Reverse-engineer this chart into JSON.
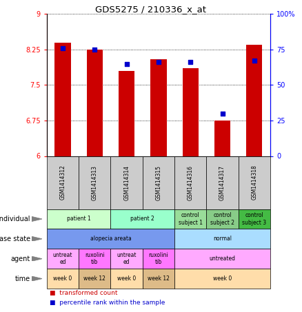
{
  "title": "GDS5275 / 210336_x_at",
  "samples": [
    "GSM1414312",
    "GSM1414313",
    "GSM1414314",
    "GSM1414315",
    "GSM1414316",
    "GSM1414317",
    "GSM1414318"
  ],
  "bar_values": [
    8.4,
    8.25,
    7.8,
    8.05,
    7.85,
    6.75,
    8.35
  ],
  "dot_values": [
    76,
    75,
    65,
    66,
    66,
    30,
    67
  ],
  "ylim_left": [
    6,
    9
  ],
  "ylim_right": [
    0,
    100
  ],
  "yticks_left": [
    6,
    6.75,
    7.5,
    8.25,
    9
  ],
  "yticks_right": [
    0,
    25,
    50,
    75,
    100
  ],
  "ytick_labels_right": [
    "0",
    "25",
    "50",
    "75",
    "100%"
  ],
  "ytick_labels_left": [
    "6",
    "6.75",
    "7.5",
    "8.25",
    "9"
  ],
  "bar_color": "#cc0000",
  "dot_color": "#0000cc",
  "bar_bottom": 6,
  "annotations": {
    "individual": {
      "label": "individual",
      "groups": [
        {
          "span": [
            0,
            1
          ],
          "text": "patient 1",
          "color": "#ccffcc"
        },
        {
          "span": [
            2,
            3
          ],
          "text": "patient 2",
          "color": "#99ffcc"
        },
        {
          "span": [
            4,
            4
          ],
          "text": "control\nsubject 1",
          "color": "#99dd99"
        },
        {
          "span": [
            5,
            5
          ],
          "text": "control\nsubject 2",
          "color": "#88cc88"
        },
        {
          "span": [
            6,
            6
          ],
          "text": "control\nsubject 3",
          "color": "#44bb44"
        }
      ]
    },
    "disease_state": {
      "label": "disease state",
      "groups": [
        {
          "span": [
            0,
            3
          ],
          "text": "alopecia areata",
          "color": "#7799ee"
        },
        {
          "span": [
            4,
            6
          ],
          "text": "normal",
          "color": "#aaddff"
        }
      ]
    },
    "agent": {
      "label": "agent",
      "groups": [
        {
          "span": [
            0,
            0
          ],
          "text": "untreat\ned",
          "color": "#ffaaff"
        },
        {
          "span": [
            1,
            1
          ],
          "text": "ruxolini\ntib",
          "color": "#ff77ff"
        },
        {
          "span": [
            2,
            2
          ],
          "text": "untreat\ned",
          "color": "#ffaaff"
        },
        {
          "span": [
            3,
            3
          ],
          "text": "ruxolini\ntib",
          "color": "#ff77ff"
        },
        {
          "span": [
            4,
            6
          ],
          "text": "untreated",
          "color": "#ffaaff"
        }
      ]
    },
    "time": {
      "label": "time",
      "groups": [
        {
          "span": [
            0,
            0
          ],
          "text": "week 0",
          "color": "#ffddaa"
        },
        {
          "span": [
            1,
            1
          ],
          "text": "week 12",
          "color": "#ddbb88"
        },
        {
          "span": [
            2,
            2
          ],
          "text": "week 0",
          "color": "#ffddaa"
        },
        {
          "span": [
            3,
            3
          ],
          "text": "week 12",
          "color": "#ddbb88"
        },
        {
          "span": [
            4,
            6
          ],
          "text": "week 0",
          "color": "#ffddaa"
        }
      ]
    }
  },
  "annot_order": [
    "individual",
    "disease_state",
    "agent",
    "time"
  ],
  "annot_labels": [
    "individual",
    "disease state",
    "agent",
    "time"
  ],
  "legend": [
    {
      "color": "#cc0000",
      "label": "transformed count"
    },
    {
      "color": "#0000cc",
      "label": "percentile rank within the sample"
    }
  ]
}
